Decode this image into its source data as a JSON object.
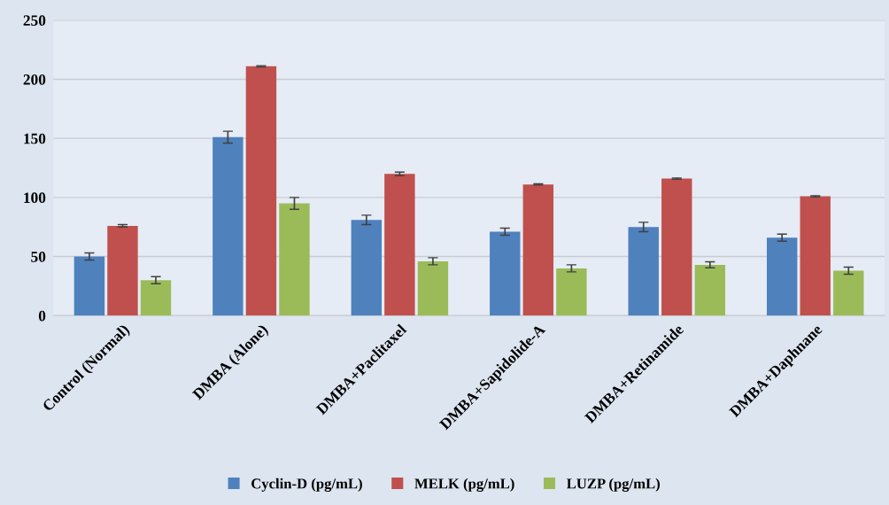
{
  "chart_data": {
    "type": "bar",
    "categories": [
      "Control (Normal)",
      "DMBA (Alone)",
      "DMBA+Paclitaxel",
      "DMBA+Sapidolide-A",
      "DMBA+Retinamide",
      "DMBA+Daphnane"
    ],
    "series": [
      {
        "name": "Cyclin-D (pg/mL)",
        "color": "#4f81bd",
        "values": [
          50,
          151,
          81,
          71,
          75,
          66
        ],
        "errors": [
          3,
          5,
          4,
          3,
          4,
          3
        ]
      },
      {
        "name": "MELK (pg/mL)",
        "color": "#c0504d",
        "values": [
          76,
          211,
          120,
          111,
          116,
          101
        ],
        "errors": [
          1,
          0.5,
          1.5,
          0.5,
          0.5,
          0.5
        ]
      },
      {
        "name": "LUZP (pg/mL)",
        "color": "#9bbb59",
        "values": [
          30,
          95,
          46,
          40,
          43,
          38
        ],
        "errors": [
          3,
          5,
          3,
          3,
          2.5,
          3
        ]
      }
    ],
    "ylim": [
      0,
      250
    ],
    "yticks": [
      0,
      50,
      100,
      150,
      200,
      250
    ],
    "grid": "y",
    "legend": "bottom"
  }
}
